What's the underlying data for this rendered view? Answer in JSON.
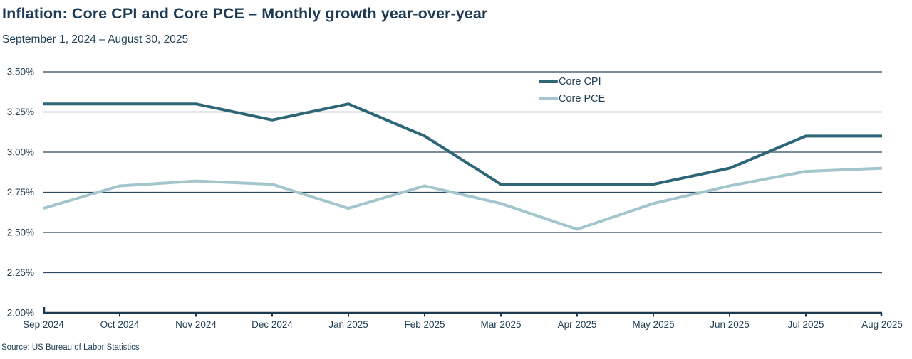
{
  "header": {
    "title": "Inflation: Core CPI and Core PCE – Monthly growth year-over-year",
    "subtitle": "September 1, 2024 – August 30, 2025"
  },
  "footer": {
    "source": "Source: US Bureau of Labor Statistics"
  },
  "colors": {
    "title_text": "#1d3a54",
    "axis_text": "#1f3d53",
    "gridline": "#2b4961",
    "axis_line": "#1c394f",
    "core_cpi": "#2e6678",
    "core_pce": "#a3c6cc",
    "background": "#ffffff"
  },
  "chart_data": {
    "type": "line",
    "title": "Inflation: Core CPI and Core PCE – Monthly growth year-over-year",
    "subtitle": "September 1, 2024 – August 30, 2025",
    "x": [
      "Sep 2024",
      "Oct 2024",
      "Nov 2024",
      "Dec 2024",
      "Jan 2025",
      "Feb 2025",
      "Mar 2025",
      "Apr 2025",
      "May 2025",
      "Jun 2025",
      "Jul 2025",
      "Aug 2025"
    ],
    "series": [
      {
        "name": "Core CPI",
        "color": "#2e6678",
        "values": [
          3.3,
          3.3,
          3.3,
          3.2,
          3.3,
          3.1,
          2.8,
          2.8,
          2.8,
          2.9,
          3.1,
          3.1
        ]
      },
      {
        "name": "Core PCE",
        "color": "#a3c6cc",
        "values": [
          2.65,
          2.79,
          2.82,
          2.8,
          2.65,
          2.79,
          2.68,
          2.52,
          2.68,
          2.79,
          2.88,
          2.9
        ]
      }
    ],
    "ylim": [
      2.0,
      3.5
    ],
    "yticks": [
      {
        "label": "3.50%",
        "value": 3.5
      },
      {
        "label": "3.25%",
        "value": 3.25
      },
      {
        "label": "3.00%",
        "value": 3.0
      },
      {
        "label": "2.75%",
        "value": 2.75
      },
      {
        "label": "2.50%",
        "value": 2.5
      },
      {
        "label": "2.25%",
        "value": 2.25
      },
      {
        "label": "2.00%",
        "value": 2.0
      }
    ],
    "grid": "horizontal",
    "legend_position": "inside-top-center-right",
    "xlabel": "",
    "ylabel": ""
  }
}
